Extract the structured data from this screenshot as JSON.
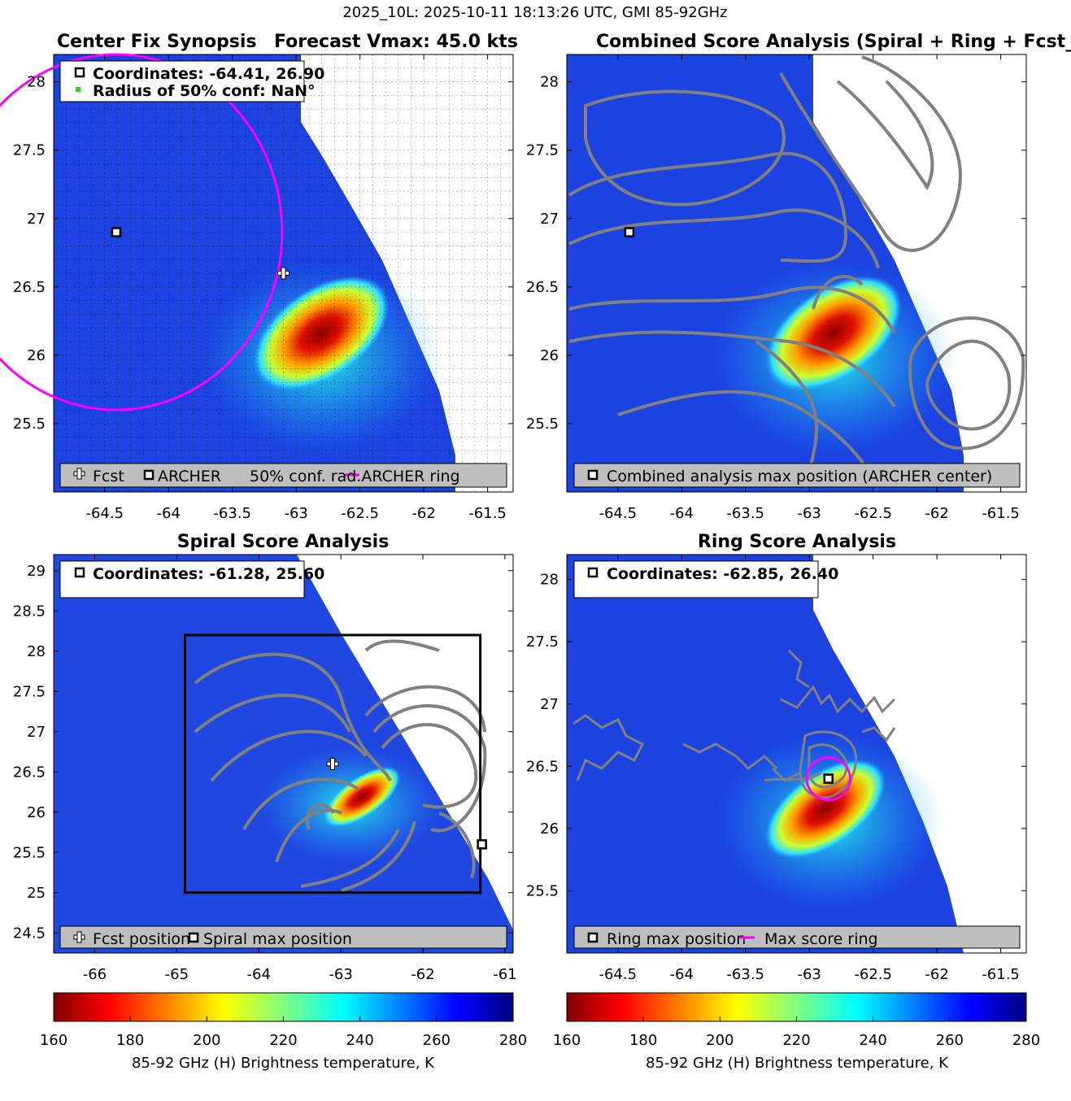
{
  "figure": {
    "suptitle": "2025_10L: 2025-10-11 18:13:26 UTC, GMI 85-92GHz"
  },
  "colors": {
    "fcst_marker": "#ffffff",
    "archer_marker": "#000000",
    "ring": "#ff00ff",
    "contour": "#808080",
    "legend_bg": "#bebebe",
    "conf_dot": "#22dd22"
  },
  "icons": [
    "plus-marker-icon",
    "square-marker-icon",
    "magenta-line-icon",
    "green-dot-icon"
  ],
  "chart_data": [
    {
      "type": "heatmap",
      "id": "p1",
      "title": "Center Fix Synopsis",
      "title2": "Forecast Vmax: 45.0 kts",
      "xlim": [
        -64.9,
        -61.3
      ],
      "ylim": [
        25.0,
        28.2
      ],
      "xticks": [
        -64.5,
        -64,
        -63.5,
        -63,
        -62.5,
        -62,
        -61.5
      ],
      "yticks": [
        25.5,
        26,
        26.5,
        27,
        27.5,
        28
      ],
      "grid": "dashed-dotted",
      "fcst": {
        "x": -63.1,
        "y": 26.6
      },
      "archer": {
        "x": -64.41,
        "y": 26.9
      },
      "ring": {
        "cx": -64.41,
        "cy": 26.9,
        "r": 1.3
      },
      "info": [
        "Coordinates: -64.41, 26.90",
        "Radius of 50% conf: NaN°"
      ],
      "legend": [
        "Fcst",
        "ARCHER",
        "50% conf. rad.ARCHER ring"
      ],
      "legend_placement": "bottom"
    },
    {
      "type": "heatmap",
      "id": "p2",
      "title": "Combined Score Analysis (Spiral + Ring + Fcst_Pe",
      "xlim": [
        -64.9,
        -61.3
      ],
      "ylim": [
        25.0,
        28.2
      ],
      "xticks": [
        -64.5,
        -64,
        -63.5,
        -63,
        -62.5,
        -62,
        -61.5
      ],
      "yticks": [
        25.5,
        26,
        26.5,
        27,
        27.5,
        28
      ],
      "archer": {
        "x": -64.41,
        "y": 26.9
      },
      "contours": "gray",
      "legend": [
        "Combined analysis max position (ARCHER center)"
      ],
      "legend_placement": "bottom"
    },
    {
      "type": "heatmap",
      "id": "p3",
      "title": "Spiral Score Analysis",
      "xlim": [
        -66.5,
        -60.9
      ],
      "ylim": [
        24.25,
        29.2
      ],
      "xticks": [
        -66,
        -65,
        -64,
        -63,
        -62,
        -61
      ],
      "yticks": [
        24.5,
        25,
        25.5,
        26,
        26.5,
        27,
        27.5,
        28,
        28.5,
        29
      ],
      "fcst": {
        "x": -63.1,
        "y": 26.6
      },
      "max": {
        "x": -61.28,
        "y": 25.6
      },
      "box": {
        "x": [
          -64.9,
          -61.3
        ],
        "y": [
          25.0,
          28.2
        ]
      },
      "info": [
        "Coordinates: -61.28, 25.60"
      ],
      "legend": [
        "Fcst position",
        "Spiral max position"
      ],
      "legend_placement": "bottom"
    },
    {
      "type": "heatmap",
      "id": "p4",
      "title": "Ring Score Analysis",
      "xlim": [
        -64.9,
        -61.3
      ],
      "ylim": [
        25.0,
        28.2
      ],
      "xticks": [
        -64.5,
        -64,
        -63.5,
        -63,
        -62.5,
        -62,
        -61.5
      ],
      "yticks": [
        25.5,
        26,
        26.5,
        27,
        27.5,
        28
      ],
      "max": {
        "x": -62.85,
        "y": 26.4
      },
      "ring": {
        "cx": -62.85,
        "cy": 26.4,
        "r": 0.17
      },
      "info": [
        "Coordinates: -62.85, 26.40"
      ],
      "legend": [
        "Ring max position",
        "Max score ring"
      ],
      "legend_placement": "bottom"
    }
  ],
  "colorbars": [
    {
      "ticks": [
        160,
        180,
        200,
        220,
        240,
        260,
        280
      ],
      "label": "85-92 GHz (H) Brightness temperature, K",
      "colormap": "jet-reversed"
    },
    {
      "ticks": [
        160,
        180,
        200,
        220,
        240,
        260,
        280
      ],
      "label": "85-92 GHz (H) Brightness temperature, K",
      "colormap": "jet-reversed"
    }
  ]
}
